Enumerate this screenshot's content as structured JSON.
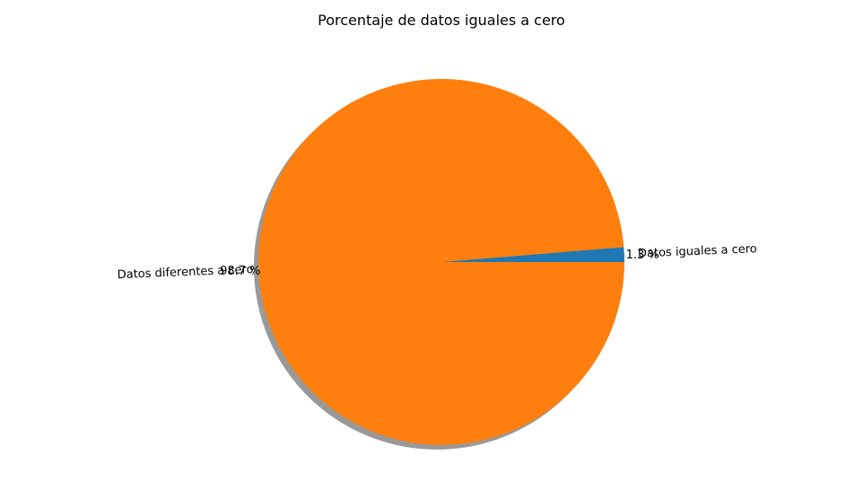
{
  "chart_data": {
    "type": "pie",
    "title": "Porcentaje de datos iguales a cero",
    "slices": [
      {
        "label": "Datos iguales a cero",
        "value": 1.3,
        "pct_label": "1.3 %",
        "color": "#1f77b4"
      },
      {
        "label": "Datos diferentes a cero",
        "value": 98.7,
        "pct_label": "98.7 %",
        "color": "#ff7f0e"
      }
    ],
    "start_angle_deg": 0,
    "direction": "counterclockwise",
    "shadow": true,
    "legend": "none"
  }
}
